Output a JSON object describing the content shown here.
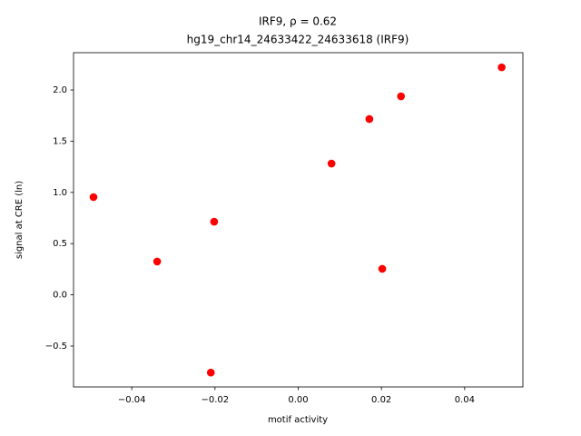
{
  "chart_data": {
    "type": "scatter",
    "title": [
      "IRF9, ρ = 0.62",
      "hg19_chr14_24633422_24633618 (IRF9)"
    ],
    "x_label": "motif activity",
    "y_label": "signal at CRE (ln)",
    "color": "#ff0000",
    "x": [
      -0.0492,
      -0.0339,
      -0.0202,
      -0.021,
      0.008,
      0.0171,
      0.0202,
      0.0247,
      0.0489
    ],
    "y": [
      0.954,
      0.325,
      0.714,
      -0.759,
      1.282,
      1.716,
      0.254,
      1.938,
      2.221
    ],
    "xlim": [
      -0.054,
      0.054
    ],
    "ylim": [
      -0.899,
      2.364
    ],
    "xticks": [
      {
        "value": -0.04,
        "label": "−0.04"
      },
      {
        "value": -0.02,
        "label": "−0.02"
      },
      {
        "value": 0,
        "label": "0.00"
      },
      {
        "value": 0.02,
        "label": "0.02"
      },
      {
        "value": 0.04,
        "label": "0.04"
      }
    ],
    "yticks": [
      {
        "value": -0.5,
        "label": "−0.5"
      },
      {
        "value": 0,
        "label": "0.0"
      },
      {
        "value": 0.5,
        "label": "0.5"
      },
      {
        "value": 1,
        "label": "1.0"
      },
      {
        "value": 1.5,
        "label": "1.5"
      },
      {
        "value": 2,
        "label": "2.0"
      }
    ]
  }
}
